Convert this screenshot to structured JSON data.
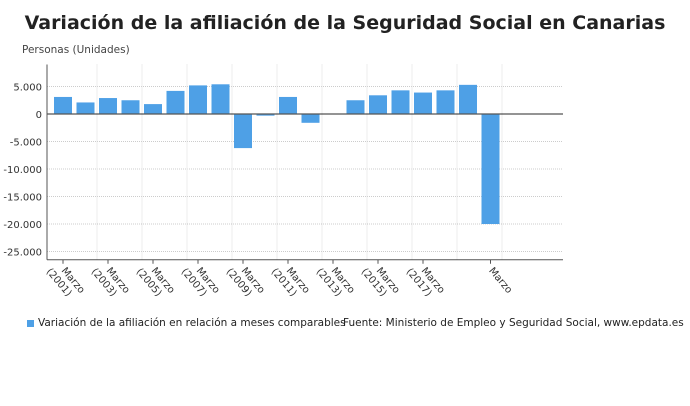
{
  "chart_data": {
    "type": "bar",
    "title": "Variación de la afiliación de la Seguridad Social en Canarias",
    "ylabel": "Personas (Unidades)",
    "xlabel": "",
    "categories": [
      "Marzo (2001)",
      "Marzo (2002)",
      "Marzo (2003)",
      "Marzo (2004)",
      "Marzo (2005)",
      "Marzo (2006)",
      "Marzo (2007)",
      "Marzo (2008)",
      "Marzo (2009)",
      "Marzo (2010)",
      "Marzo (2011)",
      "Marzo (2012)",
      "Marzo (2013)",
      "Marzo (2014)",
      "Marzo (2015)",
      "Marzo (2016)",
      "Marzo (2017)",
      "Marzo (2018)",
      "Marzo (2019)",
      "Marzo (2020)"
    ],
    "tick_labels": [
      {
        "index": 0,
        "line1": "Marzo",
        "line2": "(2001)"
      },
      {
        "index": 2,
        "line1": "Marzo",
        "line2": "(2003)"
      },
      {
        "index": 4,
        "line1": "Marzo",
        "line2": "(2005)"
      },
      {
        "index": 6,
        "line1": "Marzo",
        "line2": "(2007)"
      },
      {
        "index": 8,
        "line1": "Marzo",
        "line2": "(2009)"
      },
      {
        "index": 10,
        "line1": "Marzo",
        "line2": "(2011)"
      },
      {
        "index": 12,
        "line1": "Marzo",
        "line2": "(2013)"
      },
      {
        "index": 14,
        "line1": "Marzo",
        "line2": "(2015)"
      },
      {
        "index": 16,
        "line1": "Marzo",
        "line2": "(2017)"
      },
      {
        "index": 19,
        "line1": "Marzo",
        "line2": ""
      }
    ],
    "series": [
      {
        "name": "Variación de la afiliación en relación a meses comparables",
        "values": [
          3100,
          2100,
          2900,
          2500,
          1800,
          4200,
          5200,
          5400,
          -6200,
          -300,
          3100,
          -1600,
          0,
          2500,
          3400,
          4300,
          3900,
          4300,
          5300,
          -20000
        ]
      }
    ],
    "ylim": [
      -26500,
      9000
    ],
    "yticks": [
      5000,
      0,
      -5000,
      -10000,
      -15000,
      -20000,
      -25000
    ],
    "ytick_labels": [
      "5.000",
      "0",
      "-5.000",
      "-10.000",
      "-15.000",
      "-20.000",
      "-25.000"
    ],
    "grid": true,
    "legend": "bottom-left",
    "color": "#4ea0e6"
  },
  "source": "Fuente: Ministerio de Empleo y Seguridad Social, www.epdata.es"
}
